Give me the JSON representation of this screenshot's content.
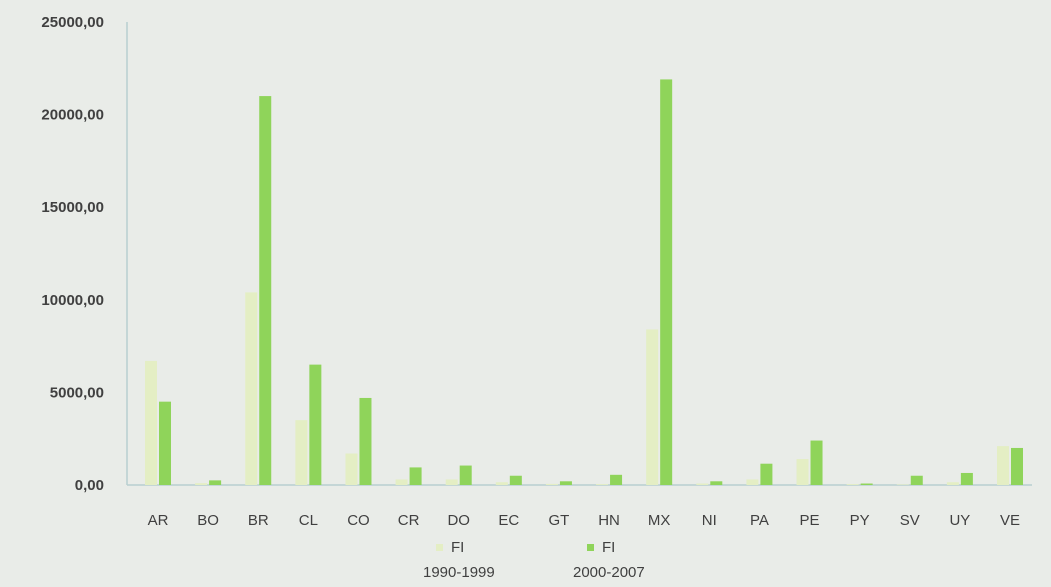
{
  "chart_data": {
    "type": "bar",
    "title": "",
    "xlabel": "",
    "ylabel": "",
    "ylim": [
      0,
      25000
    ],
    "yticks": [
      "0,00",
      "5000,00",
      "10000,00",
      "15000,00",
      "20000,00",
      "25000,00"
    ],
    "grid": false,
    "legend_position": "bottom",
    "categories": [
      "AR",
      "BO",
      "BR",
      "CL",
      "CO",
      "CR",
      "DO",
      "EC",
      "GT",
      "HN",
      "MX",
      "NI",
      "PA",
      "PE",
      "PY",
      "SV",
      "UY",
      "VE"
    ],
    "series": [
      {
        "name_line1": "FI",
        "name_line2": "1990-1999",
        "color": "#e4eec4",
        "values": [
          6700,
          100,
          10400,
          3500,
          1700,
          300,
          300,
          150,
          60,
          50,
          8400,
          80,
          300,
          1400,
          50,
          30,
          150,
          2100
        ]
      },
      {
        "name_line1": "FI",
        "name_line2": "2000-2007",
        "color": "#8fd45a",
        "values": [
          4500,
          250,
          21000,
          6500,
          4700,
          950,
          1050,
          500,
          200,
          550,
          21900,
          200,
          1150,
          2400,
          80,
          500,
          650,
          2000
        ]
      }
    ]
  }
}
